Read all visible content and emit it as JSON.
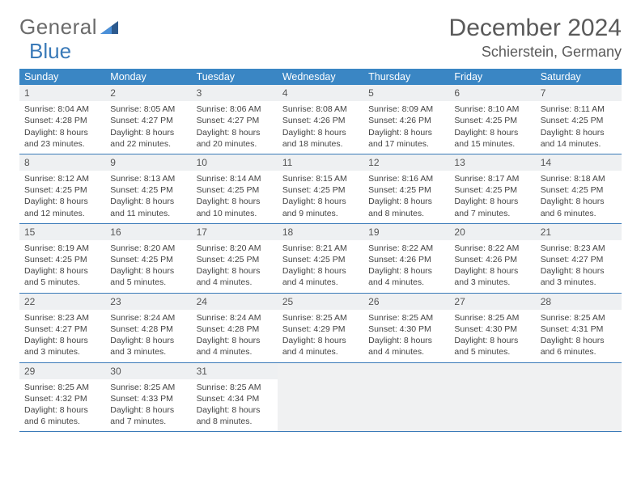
{
  "logo": {
    "text1": "General",
    "text2": "Blue"
  },
  "title": "December 2024",
  "location": "Schierstein, Germany",
  "colors": {
    "header_bg": "#3a86c4",
    "header_text": "#ffffff",
    "rule": "#3a7ab8",
    "daynum_bg": "#eef0f2",
    "empty_bg": "#f0f1f2",
    "text": "#444444",
    "title_text": "#5a5a5a",
    "logo_gray": "#6b6b6b",
    "logo_blue": "#3a7ab8"
  },
  "daynames": [
    "Sunday",
    "Monday",
    "Tuesday",
    "Wednesday",
    "Thursday",
    "Friday",
    "Saturday"
  ],
  "weeks": [
    [
      {
        "n": "1",
        "sr": "Sunrise: 8:04 AM",
        "ss": "Sunset: 4:28 PM",
        "dl": "Daylight: 8 hours and 23 minutes."
      },
      {
        "n": "2",
        "sr": "Sunrise: 8:05 AM",
        "ss": "Sunset: 4:27 PM",
        "dl": "Daylight: 8 hours and 22 minutes."
      },
      {
        "n": "3",
        "sr": "Sunrise: 8:06 AM",
        "ss": "Sunset: 4:27 PM",
        "dl": "Daylight: 8 hours and 20 minutes."
      },
      {
        "n": "4",
        "sr": "Sunrise: 8:08 AM",
        "ss": "Sunset: 4:26 PM",
        "dl": "Daylight: 8 hours and 18 minutes."
      },
      {
        "n": "5",
        "sr": "Sunrise: 8:09 AM",
        "ss": "Sunset: 4:26 PM",
        "dl": "Daylight: 8 hours and 17 minutes."
      },
      {
        "n": "6",
        "sr": "Sunrise: 8:10 AM",
        "ss": "Sunset: 4:25 PM",
        "dl": "Daylight: 8 hours and 15 minutes."
      },
      {
        "n": "7",
        "sr": "Sunrise: 8:11 AM",
        "ss": "Sunset: 4:25 PM",
        "dl": "Daylight: 8 hours and 14 minutes."
      }
    ],
    [
      {
        "n": "8",
        "sr": "Sunrise: 8:12 AM",
        "ss": "Sunset: 4:25 PM",
        "dl": "Daylight: 8 hours and 12 minutes."
      },
      {
        "n": "9",
        "sr": "Sunrise: 8:13 AM",
        "ss": "Sunset: 4:25 PM",
        "dl": "Daylight: 8 hours and 11 minutes."
      },
      {
        "n": "10",
        "sr": "Sunrise: 8:14 AM",
        "ss": "Sunset: 4:25 PM",
        "dl": "Daylight: 8 hours and 10 minutes."
      },
      {
        "n": "11",
        "sr": "Sunrise: 8:15 AM",
        "ss": "Sunset: 4:25 PM",
        "dl": "Daylight: 8 hours and 9 minutes."
      },
      {
        "n": "12",
        "sr": "Sunrise: 8:16 AM",
        "ss": "Sunset: 4:25 PM",
        "dl": "Daylight: 8 hours and 8 minutes."
      },
      {
        "n": "13",
        "sr": "Sunrise: 8:17 AM",
        "ss": "Sunset: 4:25 PM",
        "dl": "Daylight: 8 hours and 7 minutes."
      },
      {
        "n": "14",
        "sr": "Sunrise: 8:18 AM",
        "ss": "Sunset: 4:25 PM",
        "dl": "Daylight: 8 hours and 6 minutes."
      }
    ],
    [
      {
        "n": "15",
        "sr": "Sunrise: 8:19 AM",
        "ss": "Sunset: 4:25 PM",
        "dl": "Daylight: 8 hours and 5 minutes."
      },
      {
        "n": "16",
        "sr": "Sunrise: 8:20 AM",
        "ss": "Sunset: 4:25 PM",
        "dl": "Daylight: 8 hours and 5 minutes."
      },
      {
        "n": "17",
        "sr": "Sunrise: 8:20 AM",
        "ss": "Sunset: 4:25 PM",
        "dl": "Daylight: 8 hours and 4 minutes."
      },
      {
        "n": "18",
        "sr": "Sunrise: 8:21 AM",
        "ss": "Sunset: 4:25 PM",
        "dl": "Daylight: 8 hours and 4 minutes."
      },
      {
        "n": "19",
        "sr": "Sunrise: 8:22 AM",
        "ss": "Sunset: 4:26 PM",
        "dl": "Daylight: 8 hours and 4 minutes."
      },
      {
        "n": "20",
        "sr": "Sunrise: 8:22 AM",
        "ss": "Sunset: 4:26 PM",
        "dl": "Daylight: 8 hours and 3 minutes."
      },
      {
        "n": "21",
        "sr": "Sunrise: 8:23 AM",
        "ss": "Sunset: 4:27 PM",
        "dl": "Daylight: 8 hours and 3 minutes."
      }
    ],
    [
      {
        "n": "22",
        "sr": "Sunrise: 8:23 AM",
        "ss": "Sunset: 4:27 PM",
        "dl": "Daylight: 8 hours and 3 minutes."
      },
      {
        "n": "23",
        "sr": "Sunrise: 8:24 AM",
        "ss": "Sunset: 4:28 PM",
        "dl": "Daylight: 8 hours and 3 minutes."
      },
      {
        "n": "24",
        "sr": "Sunrise: 8:24 AM",
        "ss": "Sunset: 4:28 PM",
        "dl": "Daylight: 8 hours and 4 minutes."
      },
      {
        "n": "25",
        "sr": "Sunrise: 8:25 AM",
        "ss": "Sunset: 4:29 PM",
        "dl": "Daylight: 8 hours and 4 minutes."
      },
      {
        "n": "26",
        "sr": "Sunrise: 8:25 AM",
        "ss": "Sunset: 4:30 PM",
        "dl": "Daylight: 8 hours and 4 minutes."
      },
      {
        "n": "27",
        "sr": "Sunrise: 8:25 AM",
        "ss": "Sunset: 4:30 PM",
        "dl": "Daylight: 8 hours and 5 minutes."
      },
      {
        "n": "28",
        "sr": "Sunrise: 8:25 AM",
        "ss": "Sunset: 4:31 PM",
        "dl": "Daylight: 8 hours and 6 minutes."
      }
    ],
    [
      {
        "n": "29",
        "sr": "Sunrise: 8:25 AM",
        "ss": "Sunset: 4:32 PM",
        "dl": "Daylight: 8 hours and 6 minutes."
      },
      {
        "n": "30",
        "sr": "Sunrise: 8:25 AM",
        "ss": "Sunset: 4:33 PM",
        "dl": "Daylight: 8 hours and 7 minutes."
      },
      {
        "n": "31",
        "sr": "Sunrise: 8:25 AM",
        "ss": "Sunset: 4:34 PM",
        "dl": "Daylight: 8 hours and 8 minutes."
      },
      null,
      null,
      null,
      null
    ]
  ]
}
